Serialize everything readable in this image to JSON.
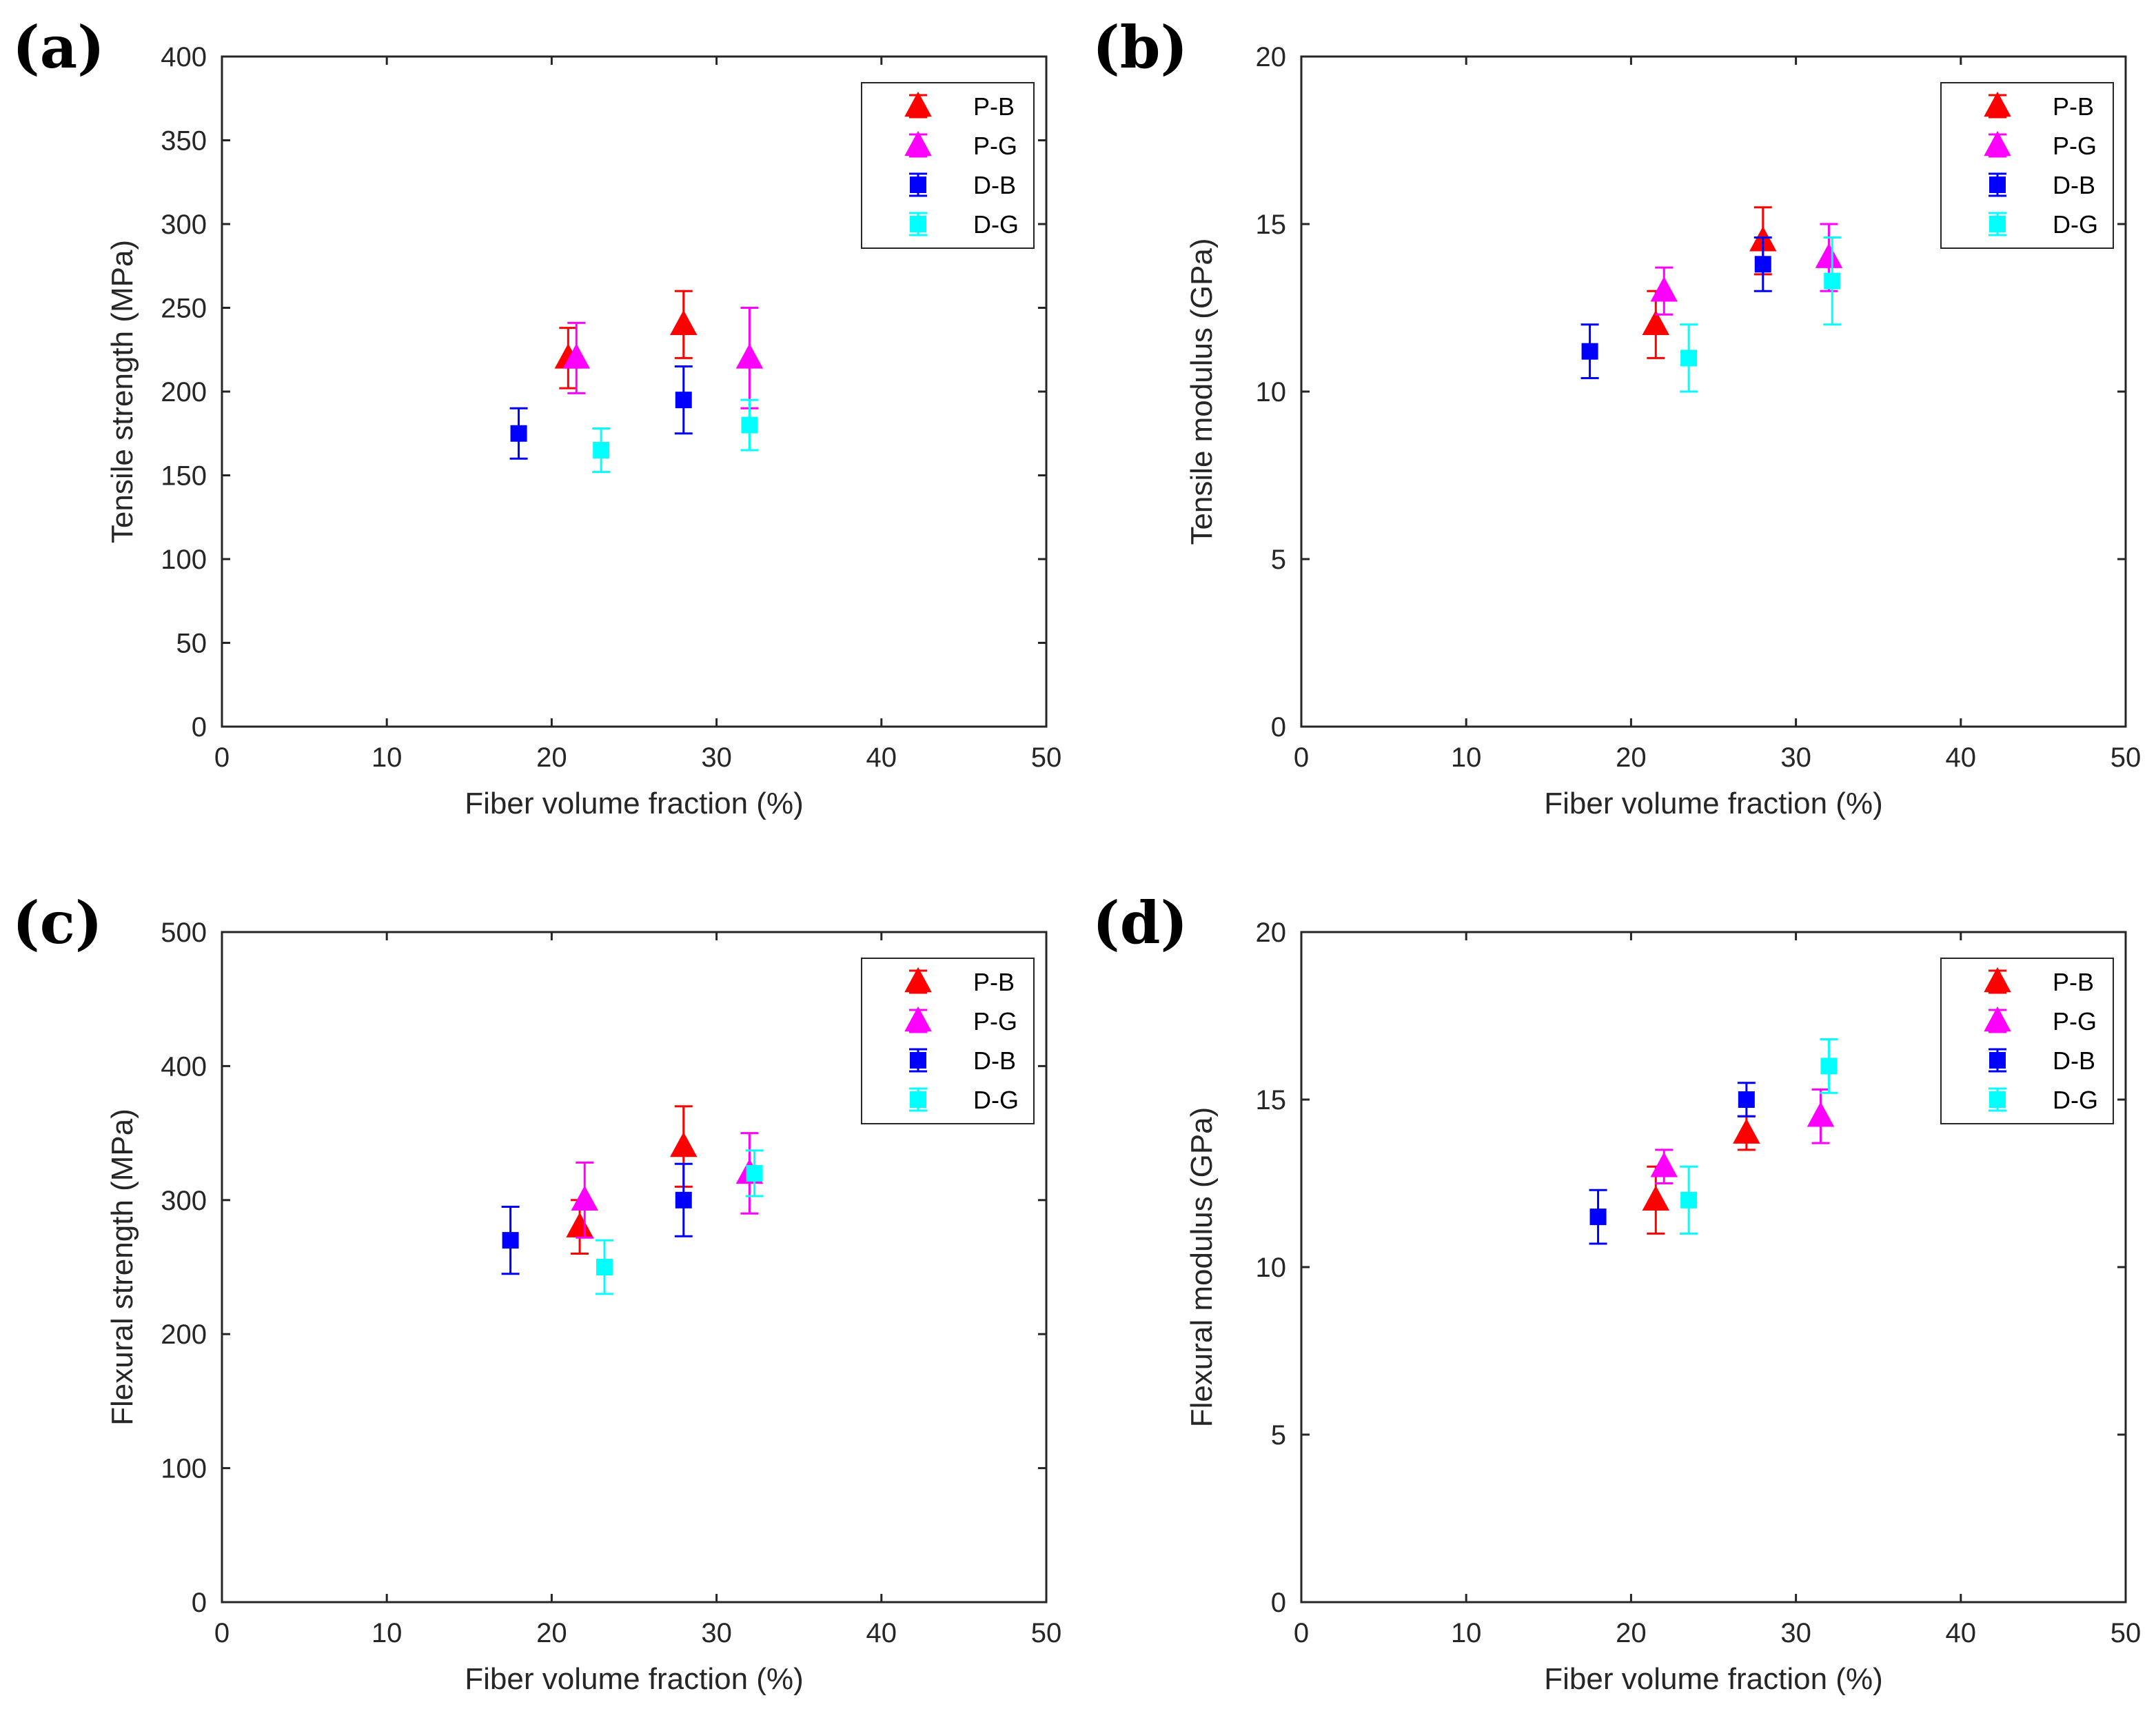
{
  "chart_data": [
    {
      "panel": "(a)",
      "type": "scatter",
      "xlabel": "Fiber volume fraction (%)",
      "ylabel": "Tensile strength (MPa)",
      "xlim": [
        0,
        50
      ],
      "ylim": [
        0,
        400
      ],
      "xticks": [
        0,
        10,
        20,
        30,
        40,
        50
      ],
      "yticks": [
        0,
        50,
        100,
        150,
        200,
        250,
        300,
        350,
        400
      ],
      "legend_position": "top-right",
      "series": [
        {
          "name": "P-B",
          "marker": "triangle",
          "color": "#ff0000",
          "points": [
            {
              "x": 21,
              "y": 220,
              "err": 18
            },
            {
              "x": 28,
              "y": 240,
              "err": 20
            }
          ]
        },
        {
          "name": "P-G",
          "marker": "triangle",
          "color": "#ff00ff",
          "points": [
            {
              "x": 21.5,
              "y": 220,
              "err": 21
            },
            {
              "x": 32,
              "y": 220,
              "err": 30
            }
          ]
        },
        {
          "name": "D-B",
          "marker": "square",
          "color": "#0000ff",
          "points": [
            {
              "x": 18,
              "y": 175,
              "err": 15
            },
            {
              "x": 28,
              "y": 195,
              "err": 20
            }
          ]
        },
        {
          "name": "D-G",
          "marker": "square",
          "color": "#00ffff",
          "points": [
            {
              "x": 23,
              "y": 165,
              "err": 13
            },
            {
              "x": 32,
              "y": 180,
              "err": 15
            }
          ]
        }
      ]
    },
    {
      "panel": "(b)",
      "type": "scatter",
      "xlabel": "Fiber volume fraction (%)",
      "ylabel": "Tensile modulus (GPa)",
      "xlim": [
        0,
        50
      ],
      "ylim": [
        0,
        20
      ],
      "xticks": [
        0,
        10,
        20,
        30,
        40,
        50
      ],
      "yticks": [
        0,
        5,
        10,
        15,
        20
      ],
      "legend_position": "top-right",
      "series": [
        {
          "name": "P-B",
          "marker": "triangle",
          "color": "#ff0000",
          "points": [
            {
              "x": 21.5,
              "y": 12,
              "err": 1
            },
            {
              "x": 28,
              "y": 14.5,
              "err": 1
            }
          ]
        },
        {
          "name": "P-G",
          "marker": "triangle",
          "color": "#ff00ff",
          "points": [
            {
              "x": 22,
              "y": 13,
              "err": 0.7
            },
            {
              "x": 32,
              "y": 14,
              "err": 1
            }
          ]
        },
        {
          "name": "D-B",
          "marker": "square",
          "color": "#0000ff",
          "points": [
            {
              "x": 17.5,
              "y": 11.2,
              "err": 0.8
            },
            {
              "x": 28,
              "y": 13.8,
              "err": 0.8
            }
          ]
        },
        {
          "name": "D-G",
          "marker": "square",
          "color": "#00ffff",
          "points": [
            {
              "x": 23.5,
              "y": 11,
              "err": 1
            },
            {
              "x": 32.2,
              "y": 13.3,
              "err": 1.3
            }
          ]
        }
      ]
    },
    {
      "panel": "(c)",
      "type": "scatter",
      "xlabel": "Fiber volume fraction (%)",
      "ylabel": "Flexural strength (MPa)",
      "xlim": [
        0,
        50
      ],
      "ylim": [
        0,
        500
      ],
      "xticks": [
        0,
        10,
        20,
        30,
        40,
        50
      ],
      "yticks": [
        0,
        100,
        200,
        300,
        400,
        500
      ],
      "legend_position": "top-right",
      "series": [
        {
          "name": "P-B",
          "marker": "triangle",
          "color": "#ff0000",
          "points": [
            {
              "x": 21.7,
              "y": 280,
              "err": 20
            },
            {
              "x": 28,
              "y": 340,
              "err": 30
            }
          ]
        },
        {
          "name": "P-G",
          "marker": "triangle",
          "color": "#ff00ff",
          "points": [
            {
              "x": 22,
              "y": 300,
              "err": 28
            },
            {
              "x": 32,
              "y": 320,
              "err": 30
            }
          ]
        },
        {
          "name": "D-B",
          "marker": "square",
          "color": "#0000ff",
          "points": [
            {
              "x": 17.5,
              "y": 270,
              "err": 25
            },
            {
              "x": 28,
              "y": 300,
              "err": 27
            }
          ]
        },
        {
          "name": "D-G",
          "marker": "square",
          "color": "#00ffff",
          "points": [
            {
              "x": 23.2,
              "y": 250,
              "err": 20
            },
            {
              "x": 32.3,
              "y": 320,
              "err": 17
            }
          ]
        }
      ]
    },
    {
      "panel": "(d)",
      "type": "scatter",
      "xlabel": "Fiber volume fraction (%)",
      "ylabel": "Flexural modulus (GPa)",
      "xlim": [
        0,
        50
      ],
      "ylim": [
        0,
        20
      ],
      "xticks": [
        0,
        10,
        20,
        30,
        40,
        50
      ],
      "yticks": [
        0,
        5,
        10,
        15,
        20
      ],
      "legend_position": "top-right",
      "series": [
        {
          "name": "P-B",
          "marker": "triangle",
          "color": "#ff0000",
          "points": [
            {
              "x": 21.5,
              "y": 12,
              "err": 1
            },
            {
              "x": 27,
              "y": 14,
              "err": 0.5
            }
          ]
        },
        {
          "name": "P-G",
          "marker": "triangle",
          "color": "#ff00ff",
          "points": [
            {
              "x": 22,
              "y": 13,
              "err": 0.5
            },
            {
              "x": 31.5,
              "y": 14.5,
              "err": 0.8
            }
          ]
        },
        {
          "name": "D-B",
          "marker": "square",
          "color": "#0000ff",
          "points": [
            {
              "x": 18,
              "y": 11.5,
              "err": 0.8
            },
            {
              "x": 27,
              "y": 15,
              "err": 0.5
            }
          ]
        },
        {
          "name": "D-G",
          "marker": "square",
          "color": "#00ffff",
          "points": [
            {
              "x": 23.5,
              "y": 12,
              "err": 1
            },
            {
              "x": 32,
              "y": 16,
              "err": 0.8
            }
          ]
        }
      ]
    }
  ]
}
